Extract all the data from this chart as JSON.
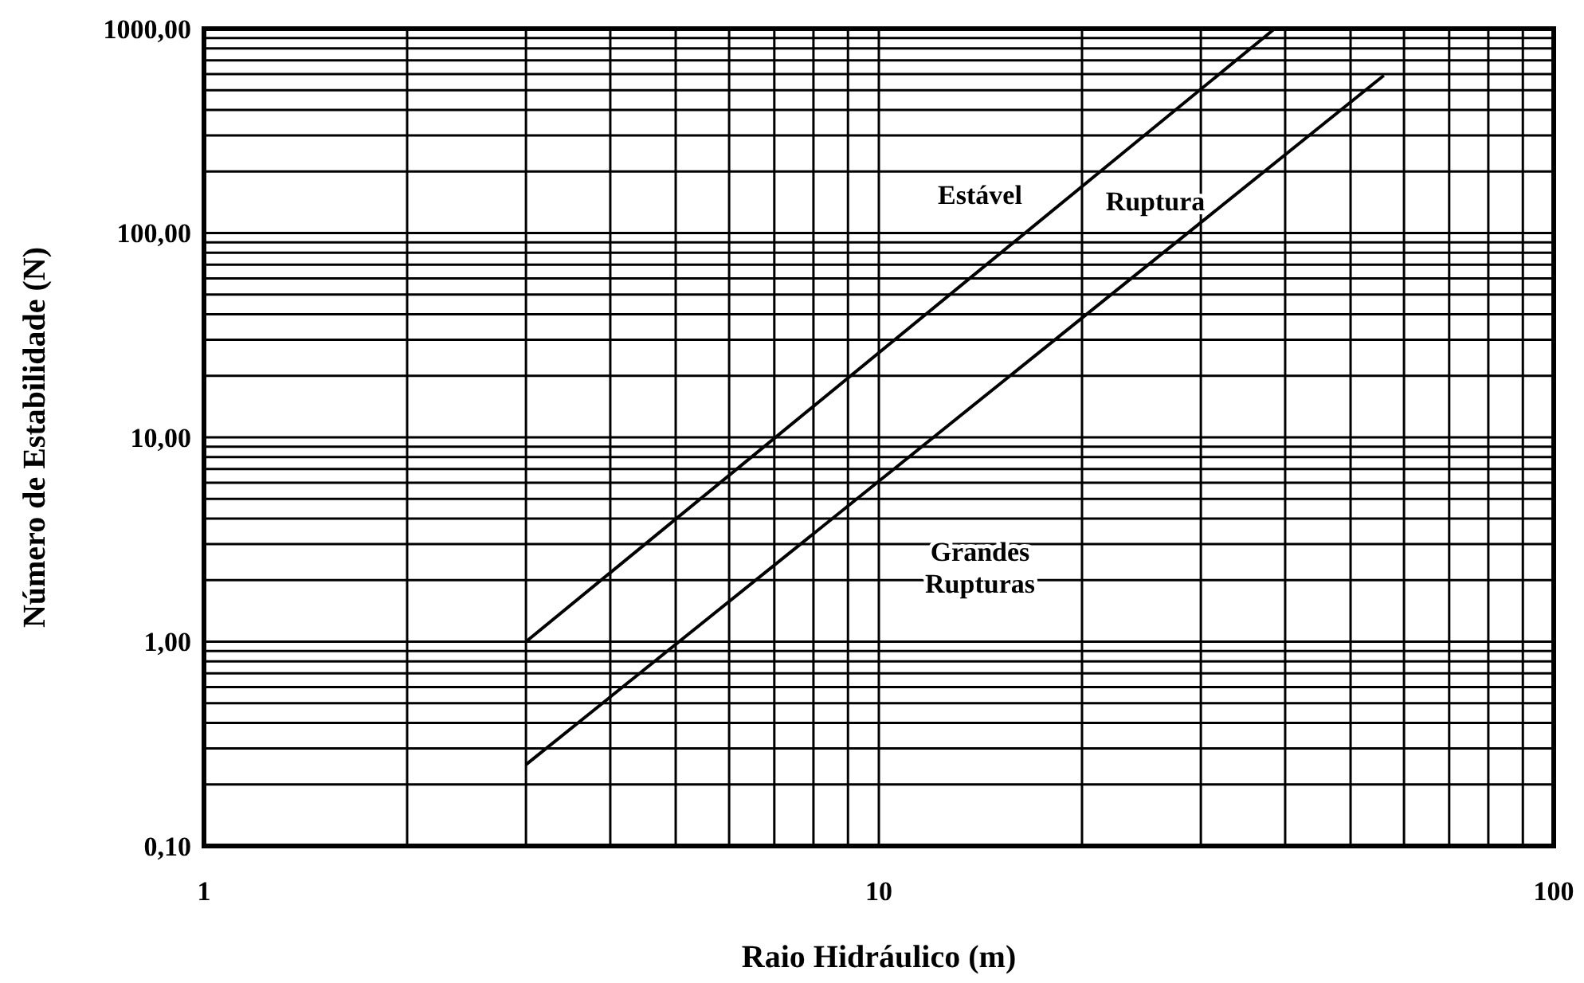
{
  "chart_data": {
    "type": "line",
    "xlabel": "Raio Hidráulico (m)",
    "ylabel": "Número de Estabilidade (N)",
    "log": "xy",
    "grid": true,
    "marker": "none",
    "line_style": "solid",
    "xlim": [
      1,
      100
    ],
    "ylim": [
      0.1,
      1000
    ],
    "xticks": [
      1,
      {
        "value": 2,
        "label": null
      },
      {
        "value": 3,
        "label": null
      },
      {
        "value": 4,
        "label": null
      },
      {
        "value": 5,
        "label": null
      },
      {
        "value": 6,
        "label": null
      },
      {
        "value": 7,
        "label": null
      },
      {
        "value": 8,
        "label": null
      },
      {
        "value": 9,
        "label": null
      },
      10,
      {
        "value": 20,
        "label": null
      },
      {
        "value": 30,
        "label": null
      },
      {
        "value": 40,
        "label": null
      },
      {
        "value": 50,
        "label": null
      },
      {
        "value": 60,
        "label": null
      },
      {
        "value": 70,
        "label": null
      },
      {
        "value": 80,
        "label": null
      },
      {
        "value": 90,
        "label": null
      },
      100
    ],
    "yticks": [
      {
        "value": 0.1,
        "label": "0,10"
      },
      {
        "value": 0.2,
        "label": null
      },
      {
        "value": 0.3,
        "label": null
      },
      {
        "value": 0.4,
        "label": null
      },
      {
        "value": 0.5,
        "label": null
      },
      {
        "value": 0.6,
        "label": null
      },
      {
        "value": 0.7,
        "label": null
      },
      {
        "value": 0.8,
        "label": null
      },
      {
        "value": 0.9,
        "label": null
      },
      {
        "value": 1,
        "label": "1,00"
      },
      {
        "value": 2,
        "label": null
      },
      {
        "value": 3,
        "label": null
      },
      {
        "value": 4,
        "label": null
      },
      {
        "value": 5,
        "label": null
      },
      {
        "value": 6,
        "label": null
      },
      {
        "value": 7,
        "label": null
      },
      {
        "value": 8,
        "label": null
      },
      {
        "value": 9,
        "label": null
      },
      {
        "value": 10,
        "label": "10,00"
      },
      {
        "value": 20,
        "label": null
      },
      {
        "value": 30,
        "label": null
      },
      {
        "value": 40,
        "label": null
      },
      {
        "value": 50,
        "label": null
      },
      {
        "value": 60,
        "label": null
      },
      {
        "value": 70,
        "label": null
      },
      {
        "value": 80,
        "label": null
      },
      {
        "value": 90,
        "label": null
      },
      {
        "value": 100,
        "label": "100,00"
      },
      {
        "value": 200,
        "label": null
      },
      {
        "value": 300,
        "label": null
      },
      {
        "value": 400,
        "label": null
      },
      {
        "value": 500,
        "label": null
      },
      {
        "value": 600,
        "label": null
      },
      {
        "value": 700,
        "label": null
      },
      {
        "value": 800,
        "label": null
      },
      {
        "value": 900,
        "label": null
      },
      {
        "value": 1000,
        "label": "1000,00"
      }
    ],
    "series": [
      {
        "color": "#000000",
        "x": [
          3,
          38.6
        ],
        "values": [
          1,
          1000
        ]
      },
      {
        "color": "#000000",
        "x": [
          3,
          56
        ],
        "values": [
          0.25,
          590
        ]
      }
    ],
    "annotations": [
      "Estável",
      "Ruptura",
      "Grandes Rupturas"
    ]
  }
}
